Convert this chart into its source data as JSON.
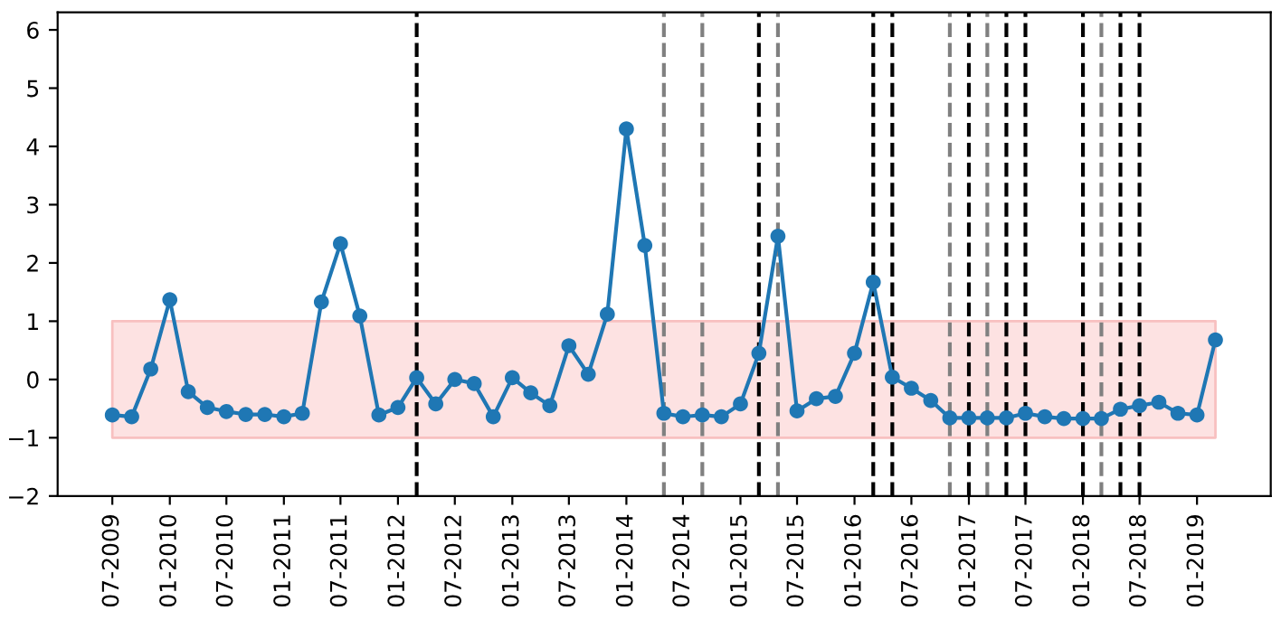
{
  "chart_data": {
    "type": "line",
    "x": [
      "2009-07",
      "2009-09",
      "2009-11",
      "2010-01",
      "2010-03",
      "2010-05",
      "2010-07",
      "2010-09",
      "2010-11",
      "2011-01",
      "2011-03",
      "2011-05",
      "2011-07",
      "2011-09",
      "2011-11",
      "2012-01",
      "2012-03",
      "2012-05",
      "2012-07",
      "2012-09",
      "2012-11",
      "2013-01",
      "2013-03",
      "2013-05",
      "2013-07",
      "2013-09",
      "2013-11",
      "2014-01",
      "2014-03",
      "2014-05",
      "2014-07",
      "2014-09",
      "2014-11",
      "2015-01",
      "2015-03",
      "2015-05",
      "2015-07",
      "2015-09",
      "2015-11",
      "2016-01",
      "2016-03",
      "2016-05",
      "2016-07",
      "2016-09",
      "2016-11",
      "2017-01",
      "2017-03",
      "2017-05",
      "2017-07",
      "2017-09",
      "2017-11",
      "2018-01",
      "2018-03",
      "2018-05",
      "2018-07",
      "2018-09",
      "2018-11",
      "2019-01",
      "2019-03"
    ],
    "series": [
      {
        "color": "#1f77b4",
        "values": [
          -0.61,
          -0.64,
          0.18,
          1.37,
          -0.21,
          -0.48,
          -0.55,
          -0.6,
          -0.6,
          -0.64,
          -0.58,
          1.33,
          2.33,
          1.09,
          -0.61,
          -0.48,
          0.03,
          -0.42,
          0.0,
          -0.07,
          -0.64,
          0.03,
          -0.23,
          -0.45,
          0.58,
          0.09,
          1.12,
          4.3,
          2.3,
          -0.58,
          -0.64,
          -0.61,
          -0.64,
          -0.42,
          0.45,
          2.46,
          -0.54,
          -0.33,
          -0.29,
          0.45,
          1.67,
          0.04,
          -0.15,
          -0.36,
          -0.66,
          -0.66,
          -0.66,
          -0.66,
          -0.58,
          -0.64,
          -0.67,
          -0.67,
          -0.67,
          -0.51,
          -0.45,
          -0.39,
          -0.58,
          -0.61,
          0.68
        ]
      }
    ],
    "marker": "circle",
    "line_style": "solid",
    "grid": false,
    "legend": false,
    "xlim": [
      "2009-01-07",
      "2019-08-25"
    ],
    "xticks": [
      {
        "value": "2009-07",
        "label": "07-2009"
      },
      {
        "value": "2010-01",
        "label": "01-2010"
      },
      {
        "value": "2010-07",
        "label": "07-2010"
      },
      {
        "value": "2011-01",
        "label": "01-2011"
      },
      {
        "value": "2011-07",
        "label": "07-2011"
      },
      {
        "value": "2012-01",
        "label": "01-2012"
      },
      {
        "value": "2012-07",
        "label": "07-2012"
      },
      {
        "value": "2013-01",
        "label": "01-2013"
      },
      {
        "value": "2013-07",
        "label": "07-2013"
      },
      {
        "value": "2014-01",
        "label": "01-2014"
      },
      {
        "value": "2014-07",
        "label": "07-2014"
      },
      {
        "value": "2015-01",
        "label": "01-2015"
      },
      {
        "value": "2015-07",
        "label": "07-2015"
      },
      {
        "value": "2016-01",
        "label": "01-2016"
      },
      {
        "value": "2016-07",
        "label": "07-2016"
      },
      {
        "value": "2017-01",
        "label": "01-2017"
      },
      {
        "value": "2017-07",
        "label": "07-2017"
      },
      {
        "value": "2018-01",
        "label": "01-2018"
      },
      {
        "value": "2018-07",
        "label": "07-2018"
      },
      {
        "value": "2019-01",
        "label": "01-2019"
      }
    ],
    "ylim": [
      -2,
      6.3
    ],
    "yticks": [
      -2,
      -1,
      0,
      1,
      2,
      3,
      4,
      5,
      6
    ],
    "bands": [
      {
        "axis": "y",
        "from": -1,
        "to": 1,
        "color": "#fde2e2"
      }
    ],
    "ref_lines": [
      {
        "axis": "x",
        "value": "2012-03",
        "color": "#000000",
        "line_style": "dashed"
      },
      {
        "axis": "x",
        "value": "2014-05",
        "color": "#808080",
        "line_style": "dashed"
      },
      {
        "axis": "x",
        "value": "2014-09",
        "color": "#808080",
        "line_style": "dashed"
      },
      {
        "axis": "x",
        "value": "2015-03",
        "color": "#000000",
        "line_style": "dashed"
      },
      {
        "axis": "x",
        "value": "2015-05",
        "color": "#808080",
        "line_style": "dashed"
      },
      {
        "axis": "x",
        "value": "2016-03",
        "color": "#000000",
        "line_style": "dashed"
      },
      {
        "axis": "x",
        "value": "2016-05",
        "color": "#000000",
        "line_style": "dashed"
      },
      {
        "axis": "x",
        "value": "2016-11",
        "color": "#808080",
        "line_style": "dashed"
      },
      {
        "axis": "x",
        "value": "2017-01",
        "color": "#000000",
        "line_style": "dashed"
      },
      {
        "axis": "x",
        "value": "2017-03",
        "color": "#808080",
        "line_style": "dashed"
      },
      {
        "axis": "x",
        "value": "2017-05",
        "color": "#000000",
        "line_style": "dashed"
      },
      {
        "axis": "x",
        "value": "2017-07",
        "color": "#000000",
        "line_style": "dashed"
      },
      {
        "axis": "x",
        "value": "2018-01",
        "color": "#000000",
        "line_style": "dashed"
      },
      {
        "axis": "x",
        "value": "2018-03",
        "color": "#808080",
        "line_style": "dashed"
      },
      {
        "axis": "x",
        "value": "2018-05",
        "color": "#000000",
        "line_style": "dashed"
      },
      {
        "axis": "x",
        "value": "2018-07",
        "color": "#000000",
        "line_style": "dashed"
      }
    ]
  }
}
